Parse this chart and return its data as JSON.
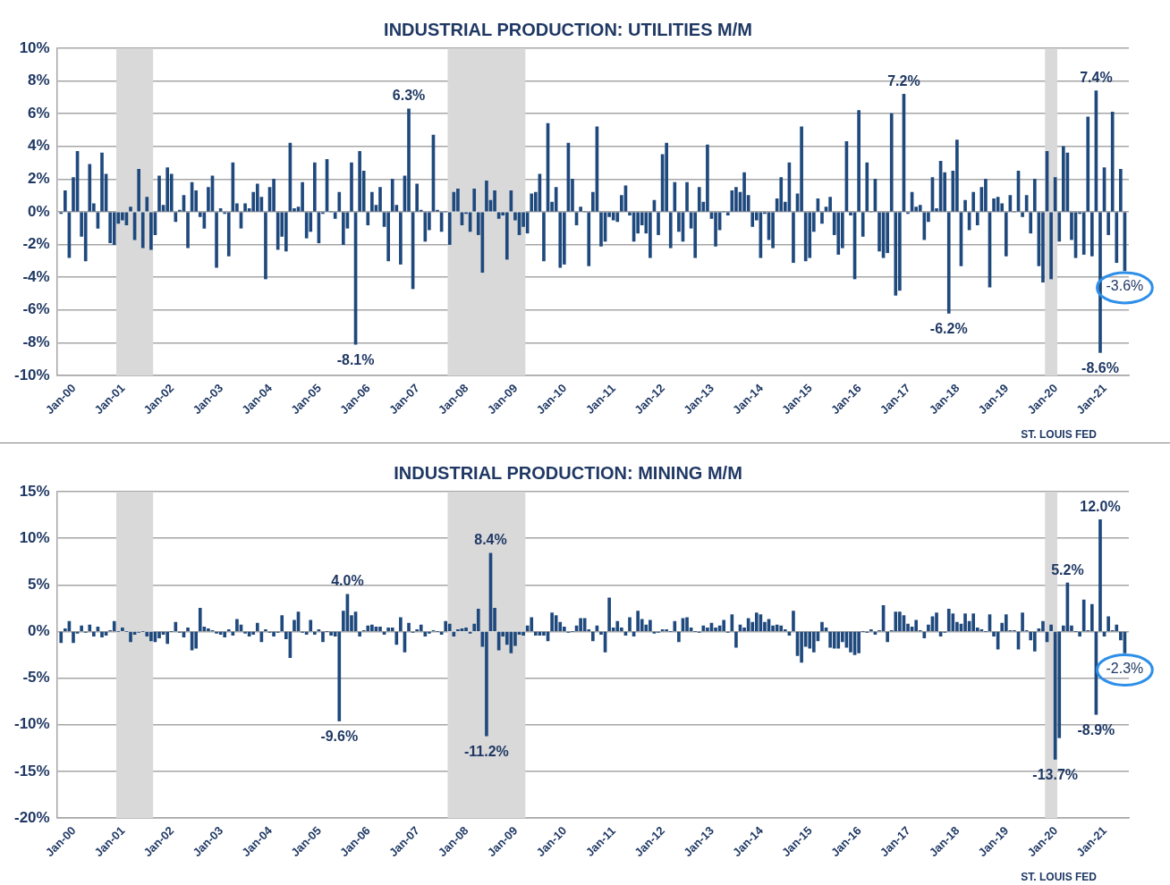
{
  "chart_data": [
    {
      "type": "bar",
      "title": "INDUSTRIAL PRODUCTION: UTILITIES M/M",
      "color": "#1f497d",
      "x": [
        "2000-01",
        "2000-02",
        "2000-03",
        "2000-04",
        "2000-05",
        "2000-06",
        "2000-07",
        "2000-08",
        "2000-09",
        "2000-10",
        "2000-11",
        "2000-12",
        "2001-01",
        "2001-02",
        "2001-03",
        "2001-04",
        "2001-05",
        "2001-06",
        "2001-07",
        "2001-08",
        "2001-09",
        "2001-10",
        "2001-11",
        "2001-12",
        "2002-01",
        "2002-02",
        "2002-03",
        "2002-04",
        "2002-05",
        "2002-06",
        "2002-07",
        "2002-08",
        "2002-09",
        "2002-10",
        "2002-11",
        "2002-12",
        "2003-01",
        "2003-02",
        "2003-03",
        "2003-04",
        "2003-05",
        "2003-06",
        "2003-07",
        "2003-08",
        "2003-09",
        "2003-10",
        "2003-11",
        "2003-12",
        "2004-01",
        "2004-02",
        "2004-03",
        "2004-04",
        "2004-05",
        "2004-06",
        "2004-07",
        "2004-08",
        "2004-09",
        "2004-10",
        "2004-11",
        "2004-12",
        "2005-01",
        "2005-02",
        "2005-03",
        "2005-04",
        "2005-05",
        "2005-06",
        "2005-07",
        "2005-08",
        "2005-09",
        "2005-10",
        "2005-11",
        "2005-12",
        "2006-01",
        "2006-02",
        "2006-03",
        "2006-04",
        "2006-05",
        "2006-06",
        "2006-07",
        "2006-08",
        "2006-09",
        "2006-10",
        "2006-11",
        "2006-12",
        "2007-01",
        "2007-02",
        "2007-03",
        "2007-04",
        "2007-05",
        "2007-06",
        "2007-07",
        "2007-08",
        "2007-09",
        "2007-10",
        "2007-11",
        "2007-12",
        "2008-01",
        "2008-02",
        "2008-03",
        "2008-04",
        "2008-05",
        "2008-06",
        "2008-07",
        "2008-08",
        "2008-09",
        "2008-10",
        "2008-11",
        "2008-12",
        "2009-01",
        "2009-02",
        "2009-03",
        "2009-04",
        "2009-05",
        "2009-06",
        "2009-07",
        "2009-08",
        "2009-09",
        "2009-10",
        "2009-11",
        "2009-12",
        "2010-01",
        "2010-02",
        "2010-03",
        "2010-04",
        "2010-05",
        "2010-06",
        "2010-07",
        "2010-08",
        "2010-09",
        "2010-10",
        "2010-11",
        "2010-12",
        "2011-01",
        "2011-02",
        "2011-03",
        "2011-04",
        "2011-05",
        "2011-06",
        "2011-07",
        "2011-08",
        "2011-09",
        "2011-10",
        "2011-11",
        "2011-12",
        "2012-01",
        "2012-02",
        "2012-03",
        "2012-04",
        "2012-05",
        "2012-06",
        "2012-07",
        "2012-08",
        "2012-09",
        "2012-10",
        "2012-11",
        "2012-12",
        "2013-01",
        "2013-02",
        "2013-03",
        "2013-04",
        "2013-05",
        "2013-06",
        "2013-07",
        "2013-08",
        "2013-09",
        "2013-10",
        "2013-11",
        "2013-12",
        "2014-01",
        "2014-02",
        "2014-03",
        "2014-04",
        "2014-05",
        "2014-06",
        "2014-07",
        "2014-08",
        "2014-09",
        "2014-10",
        "2014-11",
        "2014-12",
        "2015-01",
        "2015-02",
        "2015-03",
        "2015-04",
        "2015-05",
        "2015-06",
        "2015-07",
        "2015-08",
        "2015-09",
        "2015-10",
        "2015-11",
        "2015-12",
        "2016-01",
        "2016-02",
        "2016-03",
        "2016-04",
        "2016-05",
        "2016-06",
        "2016-07",
        "2016-08",
        "2016-09",
        "2016-10",
        "2016-11",
        "2016-12",
        "2017-01",
        "2017-02",
        "2017-03",
        "2017-04",
        "2017-05",
        "2017-06",
        "2017-07",
        "2017-08",
        "2017-09",
        "2017-10",
        "2017-11",
        "2017-12",
        "2018-01",
        "2018-02",
        "2018-03",
        "2018-04",
        "2018-05",
        "2018-06",
        "2018-07",
        "2018-08",
        "2018-09",
        "2018-10",
        "2018-11",
        "2018-12",
        "2019-01",
        "2019-02",
        "2019-03",
        "2019-04",
        "2019-05",
        "2019-06",
        "2019-07",
        "2019-08",
        "2019-09",
        "2019-10",
        "2019-11",
        "2019-12",
        "2020-01",
        "2020-02",
        "2020-03",
        "2020-04",
        "2020-05",
        "2020-06",
        "2020-07",
        "2020-08",
        "2020-09",
        "2020-10",
        "2020-11",
        "2020-12",
        "2021-01",
        "2021-02",
        "2021-03",
        "2021-04",
        "2021-05",
        "2021-06",
        "2021-07",
        "2021-08",
        "2021-09"
      ],
      "values": [
        -0.1,
        1.3,
        -2.8,
        2.1,
        3.7,
        -1.5,
        -3.0,
        2.9,
        0.5,
        -1.0,
        3.6,
        2.3,
        -1.9,
        -2.0,
        -0.7,
        -0.5,
        -0.8,
        0.3,
        -1.7,
        2.6,
        -2.2,
        0.9,
        -2.3,
        -1.4,
        2.2,
        0.4,
        2.7,
        2.3,
        -0.6,
        0.1,
        1.0,
        -2.2,
        1.8,
        1.3,
        -0.3,
        -1.0,
        1.5,
        2.2,
        -3.4,
        0.2,
        -0.1,
        -2.7,
        3.0,
        0.5,
        -1.0,
        0.5,
        0.2,
        1.2,
        1.7,
        0.9,
        -4.1,
        1.5,
        2.0,
        -2.3,
        -1.5,
        -2.4,
        4.2,
        0.2,
        0.3,
        1.8,
        -1.6,
        -1.2,
        3.0,
        -1.9,
        -0.1,
        3.2,
        0.0,
        -0.4,
        1.2,
        -2.0,
        -1.0,
        3.0,
        -8.1,
        3.7,
        2.5,
        -0.8,
        1.2,
        0.4,
        1.5,
        -0.9,
        -3.0,
        2.0,
        0.4,
        -3.2,
        2.2,
        6.3,
        -4.7,
        1.7,
        0.1,
        -1.8,
        -1.1,
        4.7,
        0.1,
        -1.2,
        0.0,
        -2.0,
        1.2,
        1.4,
        -0.8,
        -0.1,
        -1.2,
        1.4,
        -1.4,
        -3.7,
        1.9,
        0.7,
        1.3,
        -0.4,
        -0.2,
        -2.9,
        1.3,
        -0.5,
        -1.4,
        -0.9,
        -1.3,
        1.1,
        1.2,
        2.3,
        -3.0,
        5.4,
        0.6,
        1.5,
        -3.4,
        -3.2,
        4.2,
        2.0,
        -0.8,
        0.3,
        0.0,
        -3.3,
        1.2,
        5.2,
        -2.1,
        -1.8,
        -0.3,
        -0.5,
        -0.6,
        1.0,
        1.6,
        -0.2,
        -1.8,
        -1.3,
        -0.8,
        -1.3,
        -2.8,
        0.7,
        -1.4,
        3.5,
        4.2,
        -2.2,
        1.8,
        -1.2,
        -1.8,
        1.8,
        -1.0,
        -2.8,
        1.5,
        0.6,
        4.1,
        -0.4,
        -2.1,
        -1.1,
        0.0,
        -0.2,
        1.3,
        1.5,
        1.2,
        2.4,
        1.0,
        -0.9,
        -0.5,
        -2.8,
        -0.1,
        -1.7,
        -2.2,
        0.8,
        2.1,
        0.6,
        3.0,
        -3.1,
        1.1,
        5.2,
        -3.0,
        -2.8,
        -1.2,
        0.8,
        -0.7,
        0.3,
        0.9,
        -1.4,
        -2.6,
        -2.2,
        4.3,
        -0.2,
        -4.1,
        6.2,
        -1.5,
        3.0,
        0.0,
        2.0,
        -2.4,
        -2.8,
        -2.5,
        6.0,
        -5.1,
        -4.8,
        7.2,
        -0.1,
        1.2,
        0.3,
        0.4,
        -1.7,
        -0.6,
        2.1,
        0.2,
        3.1,
        2.4,
        -6.2,
        2.5,
        4.4,
        -3.3,
        0.7,
        -1.1,
        1.2,
        -0.8,
        1.5,
        2.0,
        -4.6,
        0.8,
        0.9,
        0.5,
        -2.7,
        1.0,
        0.0,
        2.5,
        -0.3,
        1.0,
        -1.3,
        2.0,
        -3.3,
        -4.3,
        3.7,
        -4.1,
        2.1,
        -1.8,
        4.0,
        3.6,
        -1.7,
        -2.8,
        -0.1,
        -2.6,
        5.8,
        -2.7,
        7.4,
        -8.6,
        2.7,
        -1.4,
        6.1,
        -3.1,
        2.6,
        -3.6
      ],
      "xlim": [
        "1999-12",
        "2021-10"
      ],
      "xticks": [
        {
          "value": "2000-01",
          "label": "Jan-00"
        },
        {
          "value": "2001-01",
          "label": "Jan-01"
        },
        {
          "value": "2002-01",
          "label": "Jan-02"
        },
        {
          "value": "2003-01",
          "label": "Jan-03"
        },
        {
          "value": "2004-01",
          "label": "Jan-04"
        },
        {
          "value": "2005-01",
          "label": "Jan-05"
        },
        {
          "value": "2006-01",
          "label": "Jan-06"
        },
        {
          "value": "2007-01",
          "label": "Jan-07"
        },
        {
          "value": "2008-01",
          "label": "Jan-08"
        },
        {
          "value": "2009-01",
          "label": "Jan-09"
        },
        {
          "value": "2010-01",
          "label": "Jan-10"
        },
        {
          "value": "2011-01",
          "label": "Jan-11"
        },
        {
          "value": "2012-01",
          "label": "Jan-12"
        },
        {
          "value": "2013-01",
          "label": "Jan-13"
        },
        {
          "value": "2014-01",
          "label": "Jan-14"
        },
        {
          "value": "2015-01",
          "label": "Jan-15"
        },
        {
          "value": "2016-01",
          "label": "Jan-16"
        },
        {
          "value": "2017-01",
          "label": "Jan-17"
        },
        {
          "value": "2018-01",
          "label": "Jan-18"
        },
        {
          "value": "2019-01",
          "label": "Jan-19"
        },
        {
          "value": "2020-01",
          "label": "Jan-20"
        },
        {
          "value": "2021-01",
          "label": "Jan-21"
        }
      ],
      "ylim": [
        -10,
        10
      ],
      "yticks": [
        {
          "value": -10,
          "label": "-10%"
        },
        {
          "value": -8,
          "label": "-8%"
        },
        {
          "value": -6,
          "label": "-6%"
        },
        {
          "value": -4,
          "label": "-4%"
        },
        {
          "value": -2,
          "label": "-2%"
        },
        {
          "value": 0,
          "label": "0%"
        },
        {
          "value": 2,
          "label": "2%"
        },
        {
          "value": 4,
          "label": "4%"
        },
        {
          "value": 6,
          "label": "6%"
        },
        {
          "value": 8,
          "label": "8%"
        },
        {
          "value": 10,
          "label": "10%"
        }
      ],
      "grid": "y",
      "bands": [
        {
          "axis": "x",
          "from": "2001-03",
          "to": "2001-11",
          "color": "#d9d9d9"
        },
        {
          "axis": "x",
          "from": "2007-12",
          "to": "2009-06",
          "color": "#d9d9d9"
        },
        {
          "axis": "x",
          "from": "2020-02",
          "to": "2020-04",
          "color": "#d9d9d9"
        }
      ],
      "annotations": [
        {
          "text": "6.3%",
          "x": "2007-02",
          "y": 6.3
        },
        {
          "text": "-8.1%",
          "x": "2006-01",
          "y": -8.1
        },
        {
          "text": "7.2%",
          "x": "2017-03",
          "y": 7.2
        },
        {
          "text": "-6.2%",
          "x": "2018-02",
          "y": -6.2
        },
        {
          "text": "7.4%",
          "x": "2021-02",
          "y": 7.4
        },
        {
          "text": "-8.6%",
          "x": "2021-03",
          "y": -8.6
        },
        {
          "text": "-3.6%",
          "x": "2021-09",
          "y": -3.6
        },
        "ST. LOUIS FED"
      ]
    },
    {
      "type": "bar",
      "title": "INDUSTRIAL PRODUCTION: MINING M/M",
      "color": "#1f497d",
      "x": [
        "2000-01",
        "2000-02",
        "2000-03",
        "2000-04",
        "2000-05",
        "2000-06",
        "2000-07",
        "2000-08",
        "2000-09",
        "2000-10",
        "2000-11",
        "2000-12",
        "2001-01",
        "2001-02",
        "2001-03",
        "2001-04",
        "2001-05",
        "2001-06",
        "2001-07",
        "2001-08",
        "2001-09",
        "2001-10",
        "2001-11",
        "2001-12",
        "2002-01",
        "2002-02",
        "2002-03",
        "2002-04",
        "2002-05",
        "2002-06",
        "2002-07",
        "2002-08",
        "2002-09",
        "2002-10",
        "2002-11",
        "2002-12",
        "2003-01",
        "2003-02",
        "2003-03",
        "2003-04",
        "2003-05",
        "2003-06",
        "2003-07",
        "2003-08",
        "2003-09",
        "2003-10",
        "2003-11",
        "2003-12",
        "2004-01",
        "2004-02",
        "2004-03",
        "2004-04",
        "2004-05",
        "2004-06",
        "2004-07",
        "2004-08",
        "2004-09",
        "2004-10",
        "2004-11",
        "2004-12",
        "2005-01",
        "2005-02",
        "2005-03",
        "2005-04",
        "2005-05",
        "2005-06",
        "2005-07",
        "2005-08",
        "2005-09",
        "2005-10",
        "2005-11",
        "2005-12",
        "2006-01",
        "2006-02",
        "2006-03",
        "2006-04",
        "2006-05",
        "2006-06",
        "2006-07",
        "2006-08",
        "2006-09",
        "2006-10",
        "2006-11",
        "2006-12",
        "2007-01",
        "2007-02",
        "2007-03",
        "2007-04",
        "2007-05",
        "2007-06",
        "2007-07",
        "2007-08",
        "2007-09",
        "2007-10",
        "2007-11",
        "2007-12",
        "2008-01",
        "2008-02",
        "2008-03",
        "2008-04",
        "2008-05",
        "2008-06",
        "2008-07",
        "2008-08",
        "2008-09",
        "2008-10",
        "2008-11",
        "2008-12",
        "2009-01",
        "2009-02",
        "2009-03",
        "2009-04",
        "2009-05",
        "2009-06",
        "2009-07",
        "2009-08",
        "2009-09",
        "2009-10",
        "2009-11",
        "2009-12",
        "2010-01",
        "2010-02",
        "2010-03",
        "2010-04",
        "2010-05",
        "2010-06",
        "2010-07",
        "2010-08",
        "2010-09",
        "2010-10",
        "2010-11",
        "2010-12",
        "2011-01",
        "2011-02",
        "2011-03",
        "2011-04",
        "2011-05",
        "2011-06",
        "2011-07",
        "2011-08",
        "2011-09",
        "2011-10",
        "2011-11",
        "2011-12",
        "2012-01",
        "2012-02",
        "2012-03",
        "2012-04",
        "2012-05",
        "2012-06",
        "2012-07",
        "2012-08",
        "2012-09",
        "2012-10",
        "2012-11",
        "2012-12",
        "2013-01",
        "2013-02",
        "2013-03",
        "2013-04",
        "2013-05",
        "2013-06",
        "2013-07",
        "2013-08",
        "2013-09",
        "2013-10",
        "2013-11",
        "2013-12",
        "2014-01",
        "2014-02",
        "2014-03",
        "2014-04",
        "2014-05",
        "2014-06",
        "2014-07",
        "2014-08",
        "2014-09",
        "2014-10",
        "2014-11",
        "2014-12",
        "2015-01",
        "2015-02",
        "2015-03",
        "2015-04",
        "2015-05",
        "2015-06",
        "2015-07",
        "2015-08",
        "2015-09",
        "2015-10",
        "2015-11",
        "2015-12",
        "2016-01",
        "2016-02",
        "2016-03",
        "2016-04",
        "2016-05",
        "2016-06",
        "2016-07",
        "2016-08",
        "2016-09",
        "2016-10",
        "2016-11",
        "2016-12",
        "2017-01",
        "2017-02",
        "2017-03",
        "2017-04",
        "2017-05",
        "2017-06",
        "2017-07",
        "2017-08",
        "2017-09",
        "2017-10",
        "2017-11",
        "2017-12",
        "2018-01",
        "2018-02",
        "2018-03",
        "2018-04",
        "2018-05",
        "2018-06",
        "2018-07",
        "2018-08",
        "2018-09",
        "2018-10",
        "2018-11",
        "2018-12",
        "2019-01",
        "2019-02",
        "2019-03",
        "2019-04",
        "2019-05",
        "2019-06",
        "2019-07",
        "2019-08",
        "2019-09",
        "2019-10",
        "2019-11",
        "2019-12",
        "2020-01",
        "2020-02",
        "2020-03",
        "2020-04",
        "2020-05",
        "2020-06",
        "2020-07",
        "2020-08",
        "2020-09",
        "2020-10",
        "2020-11",
        "2020-12",
        "2021-01",
        "2021-02",
        "2021-03",
        "2021-04",
        "2021-05",
        "2021-06",
        "2021-07",
        "2021-08",
        "2021-09"
      ],
      "values": [
        -1.2,
        0.3,
        1.1,
        -1.2,
        -0.2,
        0.6,
        -0.1,
        0.7,
        -0.5,
        0.5,
        -0.6,
        -0.4,
        0.1,
        1.1,
        0.0,
        0.4,
        0.0,
        -1.1,
        -0.3,
        -0.1,
        0.0,
        -0.5,
        -1.0,
        -1.1,
        -0.7,
        -0.3,
        -1.3,
        0.0,
        1.0,
        -0.1,
        -0.6,
        0.4,
        -2.0,
        -1.8,
        2.5,
        0.5,
        0.3,
        0.1,
        -0.2,
        -0.3,
        -0.6,
        0.2,
        -0.4,
        1.3,
        0.7,
        -0.2,
        -0.5,
        -0.3,
        0.9,
        -1.1,
        0.2,
        -0.1,
        -0.5,
        -0.1,
        1.7,
        -0.8,
        -2.8,
        1.2,
        2.1,
        -0.1,
        -0.3,
        1.2,
        -0.3,
        0.2,
        -1.1,
        0.0,
        -0.4,
        -0.5,
        -9.6,
        2.2,
        4.0,
        1.7,
        2.1,
        -0.5,
        0.1,
        0.6,
        0.7,
        0.5,
        0.5,
        -0.3,
        0.4,
        0.4,
        -1.4,
        1.5,
        -2.2,
        0.9,
        -0.1,
        0.2,
        0.7,
        -0.5,
        -0.2,
        0.1,
        0.0,
        -0.3,
        1.1,
        0.8,
        -0.5,
        0.2,
        0.3,
        0.4,
        -0.2,
        0.8,
        2.4,
        -1.6,
        -11.2,
        8.4,
        2.5,
        -2.0,
        -0.5,
        -1.4,
        -2.3,
        -1.5,
        -0.3,
        -0.4,
        0.6,
        1.5,
        -0.4,
        -0.4,
        -0.4,
        -1.0,
        2.0,
        1.7,
        1.0,
        0.5,
        -0.1,
        0.0,
        0.6,
        1.4,
        1.4,
        0.2,
        -1.0,
        0.6,
        -0.3,
        -2.2,
        3.6,
        0.4,
        1.1,
        0.4,
        -0.4,
        1.5,
        -0.5,
        2.2,
        1.3,
        0.7,
        1.2,
        -0.2,
        -0.1,
        0.2,
        0.2,
        0.0,
        1.1,
        -1.1,
        1.4,
        1.5,
        0.4,
        0.0,
        -0.1,
        0.6,
        0.4,
        0.9,
        0.4,
        0.6,
        1.2,
        -0.1,
        1.8,
        -1.7,
        0.7,
        0.4,
        1.4,
        1.0,
        2.0,
        1.8,
        1.0,
        1.3,
        0.6,
        0.7,
        0.6,
        0.2,
        -0.4,
        2.2,
        -2.6,
        -3.3,
        -1.6,
        -1.8,
        -2.2,
        -1.0,
        1.0,
        0.4,
        -1.7,
        -1.8,
        -1.8,
        -1.1,
        -1.7,
        -2.2,
        -2.5,
        -2.3,
        0.0,
        -0.1,
        0.2,
        -0.3,
        0.1,
        2.8,
        -1.1,
        0.1,
        2.1,
        2.1,
        1.7,
        0.8,
        0.5,
        1.2,
        0.1,
        -0.7,
        0.7,
        1.6,
        2.0,
        -0.5,
        -0.1,
        2.4,
        1.9,
        1.0,
        0.8,
        1.9,
        1.1,
        1.9,
        0.4,
        0.2,
        0.0,
        1.8,
        -0.5,
        -1.9,
        0.9,
        1.8,
        0.1,
        0.1,
        -1.9,
        2.0,
        0.1,
        -0.9,
        -2.1,
        0.3,
        1.1,
        -1.1,
        0.7,
        -13.7,
        -11.4,
        0.6,
        5.2,
        0.6,
        0.0,
        -0.5,
        3.4,
        0.1,
        2.9,
        -8.9,
        12.0,
        -0.5,
        1.6,
        0.1,
        0.7,
        -0.9,
        -2.3
      ],
      "xlim": [
        "1999-12",
        "2021-10"
      ],
      "xticks": [
        {
          "value": "2000-01",
          "label": "Jan-00"
        },
        {
          "value": "2001-01",
          "label": "Jan-01"
        },
        {
          "value": "2002-01",
          "label": "Jan-02"
        },
        {
          "value": "2003-01",
          "label": "Jan-03"
        },
        {
          "value": "2004-01",
          "label": "Jan-04"
        },
        {
          "value": "2005-01",
          "label": "Jan-05"
        },
        {
          "value": "2006-01",
          "label": "Jan-06"
        },
        {
          "value": "2007-01",
          "label": "Jan-07"
        },
        {
          "value": "2008-01",
          "label": "Jan-08"
        },
        {
          "value": "2009-01",
          "label": "Jan-09"
        },
        {
          "value": "2010-01",
          "label": "Jan-10"
        },
        {
          "value": "2011-01",
          "label": "Jan-11"
        },
        {
          "value": "2012-01",
          "label": "Jan-12"
        },
        {
          "value": "2013-01",
          "label": "Jan-13"
        },
        {
          "value": "2014-01",
          "label": "Jan-14"
        },
        {
          "value": "2015-01",
          "label": "Jan-15"
        },
        {
          "value": "2016-01",
          "label": "Jan-16"
        },
        {
          "value": "2017-01",
          "label": "Jan-17"
        },
        {
          "value": "2018-01",
          "label": "Jan-18"
        },
        {
          "value": "2019-01",
          "label": "Jan-19"
        },
        {
          "value": "2020-01",
          "label": "Jan-20"
        },
        {
          "value": "2021-01",
          "label": "Jan-21"
        }
      ],
      "ylim": [
        -20,
        15
      ],
      "yticks": [
        {
          "value": -20,
          "label": "-20%"
        },
        {
          "value": -15,
          "label": "-15%"
        },
        {
          "value": -10,
          "label": "-10%"
        },
        {
          "value": -5,
          "label": "-5%"
        },
        {
          "value": 0,
          "label": "0%"
        },
        {
          "value": 5,
          "label": "5%"
        },
        {
          "value": 10,
          "label": "10%"
        },
        {
          "value": 15,
          "label": "15%"
        }
      ],
      "grid": "y",
      "bands": [
        {
          "axis": "x",
          "from": "2001-03",
          "to": "2001-11",
          "color": "#d9d9d9"
        },
        {
          "axis": "x",
          "from": "2007-12",
          "to": "2009-06",
          "color": "#d9d9d9"
        },
        {
          "axis": "x",
          "from": "2020-02",
          "to": "2020-04",
          "color": "#d9d9d9"
        }
      ],
      "annotations": [
        {
          "text": "-9.6%",
          "x": "2005-09",
          "y": -9.6
        },
        {
          "text": "4.0%",
          "x": "2005-11",
          "y": 4.0
        },
        {
          "text": "-11.2%",
          "x": "2008-09",
          "y": -11.2
        },
        {
          "text": "8.4%",
          "x": "2008-10",
          "y": 8.4
        },
        {
          "text": "-13.7%",
          "x": "2020-04",
          "y": -13.7
        },
        {
          "text": "5.2%",
          "x": "2020-07",
          "y": 5.2
        },
        {
          "text": "-8.9%",
          "x": "2021-02",
          "y": -8.9
        },
        {
          "text": "12.0%",
          "x": "2021-03",
          "y": 12.0
        },
        {
          "text": "-2.3%",
          "x": "2021-09",
          "y": -2.3
        },
        "ST. LOUIS FED"
      ]
    }
  ]
}
